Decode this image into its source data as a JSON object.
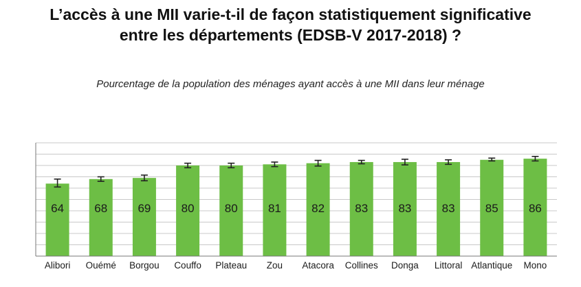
{
  "chart_data": {
    "type": "bar",
    "title": [
      "L’accès à une MII varie-t-il de façon statistiquement significative",
      "entre les départements (EDSB-V 2017-2018) ?"
    ],
    "subtitle": "Pourcentage de la population des ménages ayant accès à une MII dans leur ménage",
    "categories": [
      "Alibori",
      "Ouémé",
      "Borgou",
      "Couffo",
      "Plateau",
      "Zou",
      "Atacora",
      "Collines",
      "Donga",
      "Littoral",
      "Atlantique",
      "Mono"
    ],
    "values": [
      64,
      68,
      69,
      80,
      80,
      81,
      82,
      83,
      83,
      83,
      85,
      86
    ],
    "error_bars": [
      [
        61,
        68
      ],
      [
        66,
        70
      ],
      [
        66.5,
        71.5
      ],
      [
        78,
        82
      ],
      [
        78,
        82
      ],
      [
        79,
        83
      ],
      [
        79.5,
        84.5
      ],
      [
        81.5,
        84.5
      ],
      [
        80.5,
        85.5
      ],
      [
        81,
        85
      ],
      [
        84,
        86.5
      ],
      [
        84,
        88
      ]
    ],
    "ylim": [
      0,
      100
    ],
    "grid": true,
    "bar_color": "#6dbe45",
    "xlabel": "",
    "ylabel": ""
  }
}
